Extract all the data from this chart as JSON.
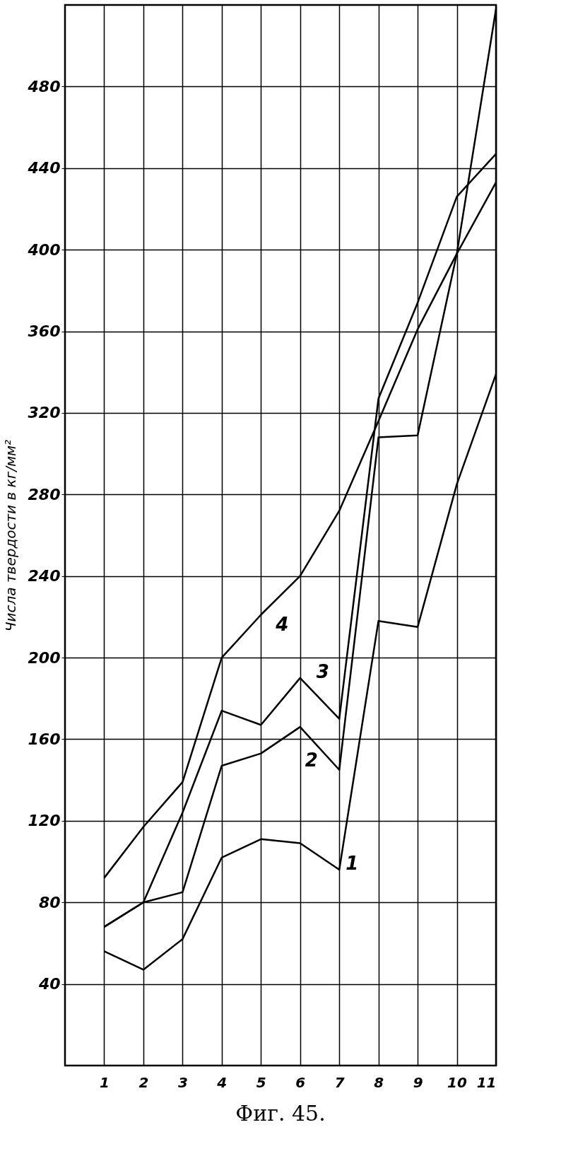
{
  "chart_data": {
    "type": "line",
    "title": "Фиг. 45.",
    "ylabel": "Числа твердости в кг/мм²",
    "x": [
      1,
      2,
      3,
      4,
      5,
      6,
      7,
      8,
      9,
      10,
      11
    ],
    "series": [
      {
        "name": "1",
        "color": "#000000",
        "values": [
          56,
          47,
          62,
          102,
          111,
          109,
          96,
          218,
          215,
          285,
          339
        ]
      },
      {
        "name": "2",
        "color": "#000000",
        "values": [
          68,
          80,
          85,
          147,
          153,
          166,
          145,
          308,
          309,
          398,
          518
        ]
      },
      {
        "name": "3",
        "color": "#000000",
        "values": [
          68,
          80,
          124,
          174,
          167,
          190,
          170,
          327,
          374,
          426,
          447
        ]
      },
      {
        "name": "4",
        "color": "#000000",
        "values": [
          92,
          117,
          139,
          200,
          221,
          240,
          272,
          316,
          361,
          398,
          433
        ]
      }
    ],
    "legend": false,
    "xlim": [
      0,
      11
    ],
    "xticks": [
      1,
      2,
      3,
      4,
      5,
      6,
      7,
      8,
      9,
      10,
      11
    ],
    "ylim": [
      0,
      520
    ],
    "yticks": [
      40,
      80,
      120,
      160,
      200,
      240,
      280,
      320,
      360,
      400,
      440,
      480
    ],
    "grid": true,
    "marker": "none",
    "line_style": "solid"
  }
}
